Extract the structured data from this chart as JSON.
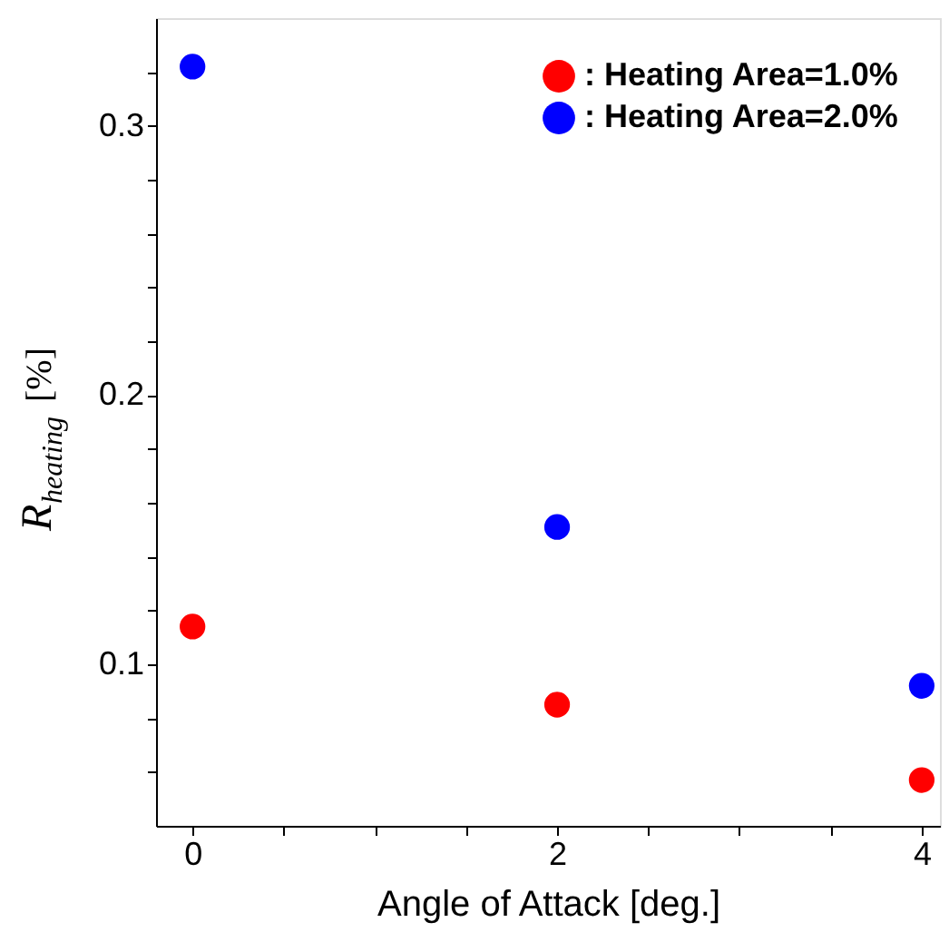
{
  "chart_data": {
    "type": "scatter",
    "xlabel": "Angle of Attack [deg.]",
    "ylabel": "R$_{heating}$ [%]",
    "x": [
      0,
      2,
      4
    ],
    "series": [
      {
        "name": ": Heating Area=1.0%",
        "color": "#ff0000",
        "values": [
          0.114,
          0.085,
          0.057
        ]
      },
      {
        "name": ": Heating Area=2.0%",
        "color": "#0000ff",
        "values": [
          0.322,
          0.151,
          0.092
        ]
      }
    ],
    "xlim": [
      -0.2,
      4.1
    ],
    "ylim": [
      0.04,
      0.34
    ],
    "xticks": [
      0,
      {
        "value": 0.5,
        "label": null
      },
      {
        "value": 1,
        "label": null
      },
      {
        "value": 1.5,
        "label": null
      },
      2,
      {
        "value": 2.5,
        "label": null
      },
      {
        "value": 3,
        "label": null
      },
      {
        "value": 3.5,
        "label": null
      },
      4
    ],
    "yticks": [
      {
        "value": 0.06,
        "label": null
      },
      {
        "value": 0.08,
        "label": null
      },
      0.1,
      {
        "value": 0.12,
        "label": null
      },
      {
        "value": 0.14,
        "label": null
      },
      {
        "value": 0.16,
        "label": null
      },
      {
        "value": 0.18,
        "label": null
      },
      0.2,
      {
        "value": 0.22,
        "label": null
      },
      {
        "value": 0.24,
        "label": null
      },
      {
        "value": 0.26,
        "label": null
      },
      {
        "value": 0.28,
        "label": null
      },
      0.3,
      {
        "value": 0.32,
        "label": null
      }
    ],
    "grid": false,
    "legend": "top right",
    "marker": "circle"
  }
}
